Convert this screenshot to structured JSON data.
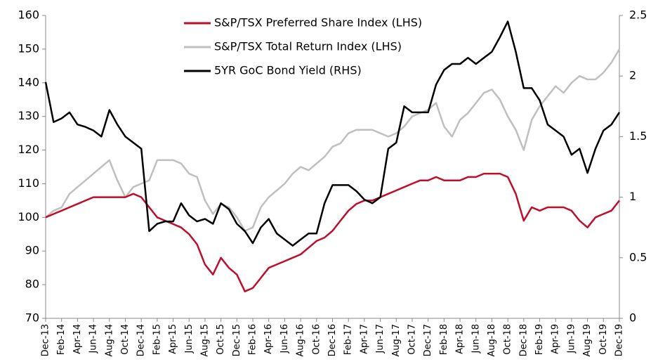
{
  "chart_data": {
    "type": "line",
    "categories": [
      "Dec-13",
      null,
      "Feb-14",
      null,
      "Apr-14",
      null,
      "Jun-14",
      null,
      "Aug-14",
      null,
      "Oct-14",
      null,
      "Dec-14",
      null,
      "Feb-15",
      null,
      "Apr-15",
      null,
      "Jun-15",
      null,
      "Aug-15",
      null,
      "Oct-15",
      null,
      "Dec-15",
      null,
      "Feb-16",
      null,
      "Apr-16",
      null,
      "Jun-16",
      null,
      "Aug-16",
      null,
      "Oct-16",
      null,
      "Dec-16",
      null,
      "Feb-17",
      null,
      "Apr-17",
      null,
      "Jun-17",
      null,
      "Aug-17",
      null,
      "Oct-17",
      null,
      "Dec-17",
      null,
      "Feb-18",
      null,
      "Apr-18",
      null,
      "Jun-18",
      null,
      "Aug-18",
      null,
      "Oct-18",
      null,
      "Dec-18",
      null,
      "Feb-19",
      null,
      "Apr-19",
      null,
      "Jun-19",
      null,
      "Aug-19",
      null,
      "Oct-19",
      null,
      "Dec-19"
    ],
    "series": [
      {
        "name": "S&P/TSX Preferred Share Index (LHS)",
        "color": "#c00d2a",
        "values": [
          100,
          101,
          102,
          103,
          104,
          105,
          106,
          106,
          106,
          106,
          106,
          107,
          106,
          103,
          100,
          99,
          98,
          97,
          95,
          92,
          86,
          83,
          88,
          85,
          83,
          78,
          79,
          82,
          85,
          86,
          87,
          88,
          89,
          91,
          93,
          94,
          96,
          99,
          102,
          104,
          105,
          105,
          106,
          107,
          108,
          109,
          110,
          111,
          111,
          112,
          111,
          111,
          111,
          112,
          112,
          113,
          113,
          113,
          112,
          107,
          99,
          103,
          102,
          103,
          103,
          103,
          102,
          99,
          97,
          100,
          101,
          102,
          105
        ]
      },
      {
        "name": "S&P/TSX Total Return Index (LHS)",
        "color": "#bfbfbf",
        "values": [
          100,
          102,
          103,
          107,
          109,
          111,
          113,
          115,
          117,
          111,
          106,
          109,
          110,
          111,
          117,
          117,
          117,
          116,
          113,
          112,
          105,
          101,
          104,
          103,
          100,
          96,
          97,
          103,
          106,
          108,
          110,
          113,
          115,
          114,
          116,
          118,
          121,
          122,
          125,
          126,
          126,
          126,
          125,
          124,
          125,
          127,
          130,
          131,
          132,
          134,
          127,
          124,
          129,
          131,
          134,
          137,
          138,
          135,
          130,
          126,
          120,
          129,
          133,
          136,
          139,
          137,
          140,
          142,
          141,
          141,
          143,
          146,
          150
        ]
      },
      {
        "name": "5YR GoC Bond Yield (RHS)",
        "color": "#000000",
        "axis": "y2",
        "values": [
          1.95,
          1.62,
          1.65,
          1.7,
          1.6,
          1.58,
          1.55,
          1.5,
          1.72,
          1.6,
          1.5,
          1.45,
          1.4,
          0.72,
          0.78,
          0.8,
          0.8,
          0.95,
          0.85,
          0.8,
          0.82,
          0.78,
          0.95,
          0.9,
          0.78,
          0.72,
          0.62,
          0.75,
          0.82,
          0.7,
          0.65,
          0.6,
          0.65,
          0.7,
          0.7,
          0.95,
          1.1,
          1.1,
          1.1,
          1.05,
          0.98,
          0.95,
          1.0,
          1.4,
          1.45,
          1.75,
          1.7,
          1.7,
          1.7,
          1.93,
          2.05,
          2.1,
          2.1,
          2.15,
          2.1,
          2.15,
          2.2,
          2.32,
          2.45,
          2.2,
          1.9,
          1.9,
          1.8,
          1.6,
          1.55,
          1.5,
          1.35,
          1.4,
          1.2,
          1.4,
          1.55,
          1.6,
          1.7
        ]
      }
    ],
    "ylim": [
      70,
      160
    ],
    "yticks": [
      70,
      80,
      90,
      100,
      110,
      120,
      130,
      140,
      150,
      160
    ],
    "y2lim": [
      0,
      2.5
    ],
    "y2ticks": [
      0,
      0.5,
      1,
      1.5,
      2,
      2.5
    ],
    "grid": false,
    "legend": "top"
  }
}
